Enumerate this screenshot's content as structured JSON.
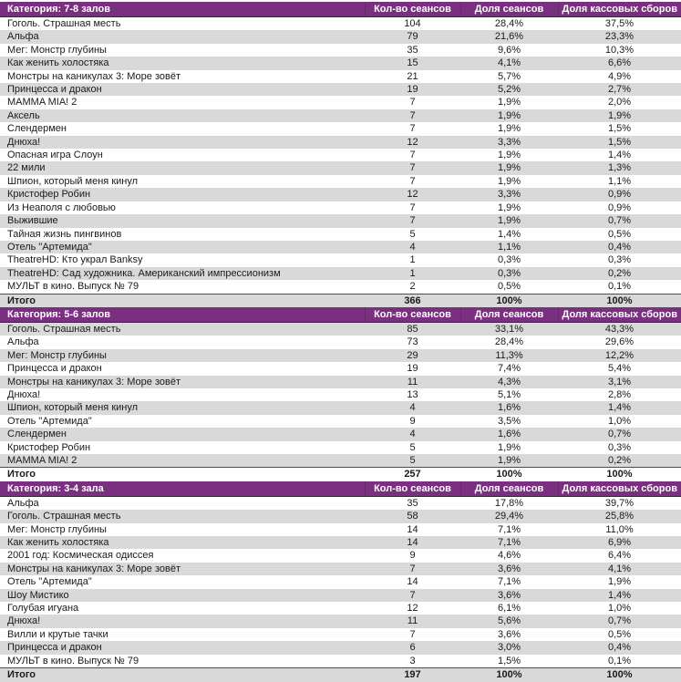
{
  "table": {
    "columns": [
      "Кол-во сеансов",
      "Доля сеансов",
      "Доля кассовых сборов"
    ],
    "total_label": "Итого",
    "colors": {
      "header_bg": "#7B2F80",
      "header_text": "#FFFFFF",
      "stripe_gray": "#D9D9D9",
      "row_text": "#1A1A1A"
    },
    "sections": [
      {
        "category": "Категория: 7-8 залов",
        "rows": [
          [
            "Гоголь. Страшная месть",
            "104",
            "28,4%",
            "37,5%"
          ],
          [
            "Альфа",
            "79",
            "21,6%",
            "23,3%"
          ],
          [
            "Мег: Монстр глубины",
            "35",
            "9,6%",
            "10,3%"
          ],
          [
            "Как женить холостяка",
            "15",
            "4,1%",
            "6,6%"
          ],
          [
            "Монстры на каникулах 3: Море зовёт",
            "21",
            "5,7%",
            "4,9%"
          ],
          [
            "Принцесса и дракон",
            "19",
            "5,2%",
            "2,7%"
          ],
          [
            "MAMMA MIA! 2",
            "7",
            "1,9%",
            "2,0%"
          ],
          [
            "Аксель",
            "7",
            "1,9%",
            "1,9%"
          ],
          [
            "Слендермен",
            "7",
            "1,9%",
            "1,5%"
          ],
          [
            "Днюха!",
            "12",
            "3,3%",
            "1,5%"
          ],
          [
            "Опасная игра Слоун",
            "7",
            "1,9%",
            "1,4%"
          ],
          [
            "22 мили",
            "7",
            "1,9%",
            "1,3%"
          ],
          [
            "Шпион, который меня кинул",
            "7",
            "1,9%",
            "1,1%"
          ],
          [
            "Кристофер Робин",
            "12",
            "3,3%",
            "0,9%"
          ],
          [
            "Из Неаполя с любовью",
            "7",
            "1,9%",
            "0,9%"
          ],
          [
            "Выжившие",
            "7",
            "1,9%",
            "0,7%"
          ],
          [
            "Тайная жизнь пингвинов",
            "5",
            "1,4%",
            "0,5%"
          ],
          [
            "Отель \"Артемида\"",
            "4",
            "1,1%",
            "0,4%"
          ],
          [
            "TheatreHD: Кто украл Banksy",
            "1",
            "0,3%",
            "0,3%"
          ],
          [
            "TheatreHD: Сад художника. Американский импрессионизм",
            "1",
            "0,3%",
            "0,2%"
          ],
          [
            "МУЛЬТ в кино. Выпуск № 79",
            "2",
            "0,5%",
            "0,1%"
          ]
        ],
        "total": [
          "366",
          "100%",
          "100%"
        ]
      },
      {
        "category": "Категория: 5-6 залов",
        "rows": [
          [
            "Гоголь. Страшная месть",
            "85",
            "33,1%",
            "43,3%"
          ],
          [
            "Альфа",
            "73",
            "28,4%",
            "29,6%"
          ],
          [
            "Мег: Монстр глубины",
            "29",
            "11,3%",
            "12,2%"
          ],
          [
            "Принцесса и дракон",
            "19",
            "7,4%",
            "5,4%"
          ],
          [
            "Монстры на каникулах 3: Море зовёт",
            "11",
            "4,3%",
            "3,1%"
          ],
          [
            "Днюха!",
            "13",
            "5,1%",
            "2,8%"
          ],
          [
            "Шпион, который меня кинул",
            "4",
            "1,6%",
            "1,4%"
          ],
          [
            "Отель \"Артемида\"",
            "9",
            "3,5%",
            "1,0%"
          ],
          [
            "Слендермен",
            "4",
            "1,6%",
            "0,7%"
          ],
          [
            "Кристофер Робин",
            "5",
            "1,9%",
            "0,3%"
          ],
          [
            "MAMMA MIA! 2",
            "5",
            "1,9%",
            "0,2%"
          ]
        ],
        "total": [
          "257",
          "100%",
          "100%"
        ]
      },
      {
        "category": "Категория: 3-4 зала",
        "rows": [
          [
            "Альфа",
            "35",
            "17,8%",
            "39,7%"
          ],
          [
            "Гоголь. Страшная месть",
            "58",
            "29,4%",
            "25,8%"
          ],
          [
            "Мег: Монстр глубины",
            "14",
            "7,1%",
            "11,0%"
          ],
          [
            "Как женить холостяка",
            "14",
            "7,1%",
            "6,9%"
          ],
          [
            "2001 год: Космическая одиссея",
            "9",
            "4,6%",
            "6,4%"
          ],
          [
            "Монстры на каникулах 3: Море зовёт",
            "7",
            "3,6%",
            "4,1%"
          ],
          [
            "Отель \"Артемида\"",
            "14",
            "7,1%",
            "1,9%"
          ],
          [
            "Шоу Мистико",
            "7",
            "3,6%",
            "1,4%"
          ],
          [
            "Голубая игуана",
            "12",
            "6,1%",
            "1,0%"
          ],
          [
            "Днюха!",
            "11",
            "5,6%",
            "0,7%"
          ],
          [
            "Вилли и крутые тачки",
            "7",
            "3,6%",
            "0,5%"
          ],
          [
            "Принцесса и дракон",
            "6",
            "3,0%",
            "0,4%"
          ],
          [
            "МУЛЬТ в кино. Выпуск № 79",
            "3",
            "1,5%",
            "0,1%"
          ]
        ],
        "total": [
          "197",
          "100%",
          "100%"
        ]
      }
    ]
  }
}
